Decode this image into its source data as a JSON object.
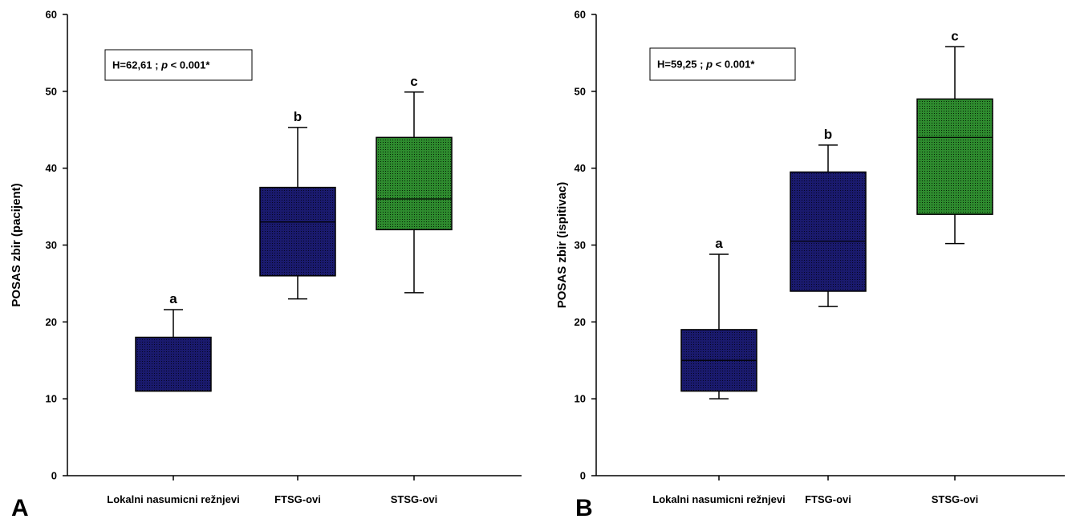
{
  "chart_data": [
    {
      "type": "box",
      "panel_label": "A",
      "ylabel": "POSAS zbir (pacijent)",
      "ylim": [
        0,
        60
      ],
      "yticks": [
        0,
        10,
        20,
        30,
        40,
        50,
        60
      ],
      "stat_text_pre": "H=62,61 ; ",
      "stat_text_p": "p",
      "stat_text_post": " < 0.001*",
      "categories": [
        "Lokalni nasumicni režnjevi",
        "FTSG-ovi",
        "STSG-ovi"
      ],
      "boxes": [
        {
          "category": "Lokalni nasumicni režnjevi",
          "whisker_low": 11,
          "q1": 11,
          "median": 11,
          "q3": 18,
          "whisker_high": 21.6,
          "letter": "a",
          "color": "#191970"
        },
        {
          "category": "FTSG-ovi",
          "whisker_low": 23,
          "q1": 26,
          "median": 33,
          "q3": 37.5,
          "whisker_high": 45.3,
          "letter": "b",
          "color": "#191970"
        },
        {
          "category": "STSG-ovi",
          "whisker_low": 23.8,
          "q1": 32,
          "median": 36,
          "q3": 44,
          "whisker_high": 49.9,
          "letter": "c",
          "color": "#1f7a1f"
        }
      ]
    },
    {
      "type": "box",
      "panel_label": "B",
      "ylabel": "POSAS zbir (ispitivac)",
      "ylim": [
        0,
        60
      ],
      "yticks": [
        0,
        10,
        20,
        30,
        40,
        50,
        60
      ],
      "stat_text_pre": "H=59,25 ; ",
      "stat_text_p": "p",
      "stat_text_post": " < 0.001*",
      "categories": [
        "Lokalni nasumicni režnjevi",
        "FTSG-ovi",
        "STSG-ovi"
      ],
      "boxes": [
        {
          "category": "Lokalni nasumicni režnjevi",
          "whisker_low": 10,
          "q1": 11,
          "median": 15,
          "q3": 19,
          "whisker_high": 28.8,
          "letter": "a",
          "color": "#191970"
        },
        {
          "category": "FTSG-ovi",
          "whisker_low": 22,
          "q1": 24,
          "median": 30.5,
          "q3": 39.5,
          "whisker_high": 43,
          "letter": "b",
          "color": "#191970"
        },
        {
          "category": "STSG-ovi",
          "whisker_low": 30.2,
          "q1": 34,
          "median": 44,
          "q3": 49,
          "whisker_high": 55.8,
          "letter": "c",
          "color": "#1f7a1f"
        }
      ]
    }
  ]
}
